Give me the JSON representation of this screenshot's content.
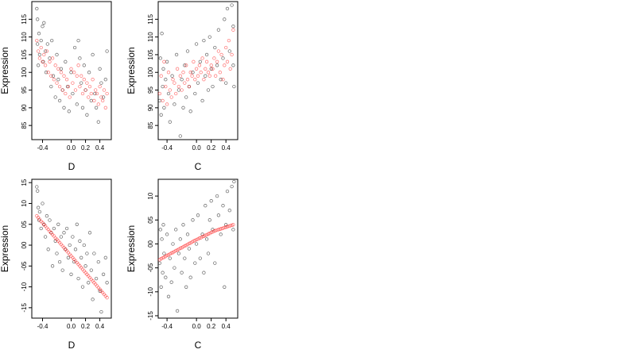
{
  "chart_data": [
    {
      "type": "scatter",
      "xlabel": "D",
      "ylabel": "Expression",
      "xlim": [
        -0.55,
        0.56
      ],
      "ylim": [
        8.1,
        12.0
      ],
      "x_ticks": [
        {
          "value": -0.4,
          "label": "-0.4"
        },
        {
          "value": 0.0,
          "label": "0.0"
        },
        {
          "value": 0.2,
          "label": "0.2"
        },
        {
          "value": 0.4,
          "label": "0.4"
        }
      ],
      "y_ticks": [
        {
          "value": 8.5,
          "label": "85"
        },
        {
          "value": 9.0,
          "label": "90"
        },
        {
          "value": 9.5,
          "label": "95"
        },
        {
          "value": 10.0,
          "label": "100"
        },
        {
          "value": 10.5,
          "label": "105"
        },
        {
          "value": 11.0,
          "label": "110"
        },
        {
          "value": 11.5,
          "label": "115"
        }
      ],
      "series": [
        {
          "color": "#000000",
          "x": [
            -0.48,
            -0.47,
            -0.47,
            -0.46,
            -0.45,
            -0.44,
            -0.42,
            -0.4,
            -0.39,
            -0.38,
            -0.36,
            -0.35,
            -0.33,
            -0.3,
            -0.28,
            -0.27,
            -0.25,
            -0.22,
            -0.2,
            -0.18,
            -0.16,
            -0.14,
            -0.12,
            -0.1,
            -0.08,
            -0.05,
            -0.03,
            0.0,
            0.02,
            0.05,
            0.08,
            0.1,
            0.12,
            0.14,
            0.16,
            0.18,
            0.2,
            0.22,
            0.25,
            0.28,
            0.3,
            0.33,
            0.35,
            0.38,
            0.4,
            0.42,
            0.45,
            0.48,
            0.5
          ],
          "y": [
            11.8,
            11.5,
            10.8,
            10.2,
            11.1,
            10.5,
            10.9,
            11.3,
            10.3,
            11.4,
            10.6,
            10.0,
            10.8,
            10.4,
            9.6,
            10.9,
            9.9,
            9.3,
            10.5,
            9.8,
            9.2,
            10.1,
            9.5,
            9.0,
            10.3,
            9.6,
            8.9,
            10.0,
            9.4,
            10.7,
            9.1,
            10.9,
            10.4,
            9.7,
            9.0,
            10.2,
            9.5,
            8.8,
            10.0,
            9.2,
            10.5,
            9.4,
            9.0,
            8.6,
            10.1,
            9.7,
            9.3,
            9.8,
            10.6
          ]
        },
        {
          "color": "#ff0000",
          "x": [
            -0.48,
            -0.46,
            -0.44,
            -0.42,
            -0.4,
            -0.38,
            -0.36,
            -0.34,
            -0.32,
            -0.3,
            -0.28,
            -0.26,
            -0.24,
            -0.22,
            -0.2,
            -0.18,
            -0.16,
            -0.14,
            -0.12,
            -0.1,
            -0.08,
            -0.06,
            -0.04,
            -0.02,
            0.0,
            0.02,
            0.04,
            0.06,
            0.08,
            0.1,
            0.12,
            0.14,
            0.16,
            0.18,
            0.2,
            0.22,
            0.24,
            0.26,
            0.28,
            0.3,
            0.32,
            0.34,
            0.36,
            0.38,
            0.4,
            0.42,
            0.44,
            0.46,
            0.48,
            0.5
          ],
          "y": [
            10.9,
            10.6,
            10.4,
            10.7,
            10.3,
            10.5,
            10.2,
            10.6,
            10.0,
            10.3,
            9.9,
            10.4,
            9.8,
            10.2,
            9.7,
            10.1,
            9.6,
            10.0,
            9.5,
            9.9,
            9.4,
            9.8,
            9.6,
            9.3,
            10.1,
            9.7,
            10.0,
            9.5,
            9.9,
            10.2,
            9.6,
            9.9,
            9.4,
            9.8,
            9.5,
            9.7,
            9.3,
            9.6,
            9.4,
            9.8,
            9.2,
            9.5,
            9.4,
            9.1,
            9.6,
            9.3,
            9.2,
            9.5,
            9.0,
            9.4
          ]
        }
      ]
    },
    {
      "type": "scatter",
      "xlabel": "C",
      "ylabel": "Expression",
      "xlim": [
        -0.52,
        0.56
      ],
      "ylim": [
        8.1,
        12.0
      ],
      "x_ticks": [
        {
          "value": -0.4,
          "label": "-0.4"
        },
        {
          "value": 0.0,
          "label": "0.0"
        },
        {
          "value": 0.2,
          "label": "0.2"
        },
        {
          "value": 0.4,
          "label": "0.4"
        }
      ],
      "y_ticks": [
        {
          "value": 8.5,
          "label": "85"
        },
        {
          "value": 9.0,
          "label": "90"
        },
        {
          "value": 9.5,
          "label": "95"
        },
        {
          "value": 10.0,
          "label": "100"
        },
        {
          "value": 10.5,
          "label": "105"
        },
        {
          "value": 11.0,
          "label": "110"
        },
        {
          "value": 11.5,
          "label": "115"
        }
      ],
      "series": [
        {
          "color": "#000000",
          "x": [
            -0.5,
            -0.49,
            -0.48,
            -0.47,
            -0.46,
            -0.45,
            -0.44,
            -0.42,
            -0.4,
            -0.38,
            -0.36,
            -0.33,
            -0.3,
            -0.27,
            -0.24,
            -0.22,
            -0.2,
            -0.18,
            -0.16,
            -0.14,
            -0.12,
            -0.1,
            -0.08,
            -0.05,
            -0.02,
            0.0,
            0.02,
            0.05,
            0.08,
            0.1,
            0.12,
            0.14,
            0.16,
            0.18,
            0.2,
            0.22,
            0.25,
            0.28,
            0.3,
            0.33,
            0.36,
            0.38,
            0.4,
            0.42,
            0.45,
            0.48,
            0.5,
            0.5,
            0.51
          ],
          "y": [
            9.2,
            10.4,
            8.8,
            11.1,
            9.6,
            10.1,
            9.0,
            9.8,
            10.3,
            9.4,
            8.6,
            9.9,
            9.1,
            10.5,
            9.5,
            8.2,
            9.8,
            9.0,
            10.2,
            9.3,
            10.6,
            9.6,
            8.9,
            10.0,
            9.4,
            10.8,
            9.7,
            10.3,
            9.2,
            10.9,
            9.9,
            10.5,
            9.5,
            11.0,
            10.1,
            9.6,
            10.7,
            10.2,
            11.2,
            9.8,
            10.4,
            11.5,
            9.7,
            11.8,
            10.6,
            11.9,
            10.2,
            11.3,
            9.6
          ]
        },
        {
          "color": "#ff0000",
          "x": [
            -0.5,
            -0.48,
            -0.46,
            -0.44,
            -0.42,
            -0.4,
            -0.38,
            -0.36,
            -0.34,
            -0.32,
            -0.3,
            -0.28,
            -0.26,
            -0.24,
            -0.22,
            -0.2,
            -0.18,
            -0.16,
            -0.14,
            -0.12,
            -0.1,
            -0.08,
            -0.06,
            -0.04,
            -0.02,
            0.0,
            0.02,
            0.04,
            0.06,
            0.08,
            0.1,
            0.12,
            0.14,
            0.16,
            0.18,
            0.2,
            0.22,
            0.24,
            0.26,
            0.28,
            0.3,
            0.32,
            0.34,
            0.36,
            0.38,
            0.4,
            0.42,
            0.44,
            0.46,
            0.48,
            0.5
          ],
          "y": [
            9.4,
            9.9,
            9.2,
            10.3,
            9.6,
            9.1,
            10.0,
            9.5,
            9.3,
            9.8,
            9.7,
            9.4,
            10.1,
            9.6,
            9.9,
            9.5,
            10.0,
            9.7,
            10.2,
            9.8,
            9.6,
            10.0,
            9.9,
            10.3,
            9.8,
            10.1,
            9.9,
            10.2,
            10.0,
            10.4,
            9.8,
            10.1,
            10.3,
            10.0,
            9.9,
            10.2,
            10.1,
            10.4,
            9.9,
            10.3,
            10.6,
            10.0,
            10.5,
            9.8,
            10.2,
            10.7,
            10.3,
            10.9,
            10.1,
            10.5,
            11.2
          ]
        }
      ]
    },
    {
      "type": "scatter",
      "xlabel": "D",
      "ylabel": "Expression",
      "xlim": [
        -0.55,
        0.56
      ],
      "ylim": [
        -1.75,
        1.58
      ],
      "x_ticks": [
        {
          "value": -0.4,
          "label": "-0.4"
        },
        {
          "value": 0.0,
          "label": "0.0"
        },
        {
          "value": 0.2,
          "label": "0.2"
        },
        {
          "value": 0.4,
          "label": "0.4"
        }
      ],
      "y_ticks": [
        {
          "value": -1.5,
          "label": "-15"
        },
        {
          "value": -1.0,
          "label": "-10"
        },
        {
          "value": -0.5,
          "label": "-05"
        },
        {
          "value": 0.0,
          "label": "00"
        },
        {
          "value": 0.5,
          "label": "05"
        },
        {
          "value": 1.0,
          "label": "10"
        },
        {
          "value": 1.5,
          "label": "15"
        }
      ],
      "series": [
        {
          "color": "#000000",
          "x": [
            -0.48,
            -0.47,
            -0.46,
            -0.45,
            -0.44,
            -0.42,
            -0.4,
            -0.38,
            -0.36,
            -0.34,
            -0.32,
            -0.3,
            -0.28,
            -0.26,
            -0.24,
            -0.22,
            -0.2,
            -0.18,
            -0.16,
            -0.14,
            -0.12,
            -0.1,
            -0.08,
            -0.06,
            -0.04,
            -0.02,
            0.0,
            0.02,
            0.04,
            0.06,
            0.08,
            0.1,
            0.12,
            0.14,
            0.16,
            0.18,
            0.2,
            0.22,
            0.24,
            0.26,
            0.28,
            0.3,
            0.32,
            0.35,
            0.38,
            0.4,
            0.42,
            0.45,
            0.48,
            0.5
          ],
          "y": [
            1.4,
            1.3,
            0.9,
            0.6,
            0.8,
            0.4,
            1.0,
            0.5,
            0.2,
            0.7,
            -0.1,
            0.6,
            0.3,
            -0.5,
            0.4,
            0.1,
            -0.2,
            0.5,
            -0.4,
            0.2,
            -0.6,
            0.3,
            -0.1,
            0.4,
            -0.3,
            0.0,
            -0.7,
            0.2,
            -0.4,
            -0.1,
            0.5,
            -0.8,
            0.1,
            -0.3,
            -1.0,
            0.0,
            -0.5,
            -0.2,
            -0.9,
            0.3,
            -0.6,
            -1.3,
            -0.2,
            -0.8,
            -0.4,
            -1.1,
            -1.6,
            -0.7,
            -0.3,
            -0.9
          ]
        },
        {
          "color": "#ff0000",
          "x": [
            -0.48,
            -0.46,
            -0.44,
            -0.42,
            -0.4,
            -0.38,
            -0.36,
            -0.34,
            -0.32,
            -0.3,
            -0.28,
            -0.26,
            -0.24,
            -0.22,
            -0.2,
            -0.18,
            -0.16,
            -0.14,
            -0.12,
            -0.1,
            -0.08,
            -0.06,
            -0.04,
            -0.02,
            0.0,
            0.02,
            0.04,
            0.06,
            0.08,
            0.1,
            0.12,
            0.14,
            0.16,
            0.18,
            0.2,
            0.22,
            0.24,
            0.26,
            0.28,
            0.3,
            0.32,
            0.34,
            0.36,
            0.38,
            0.4,
            0.42,
            0.44,
            0.46,
            0.48,
            0.5
          ],
          "y": [
            0.7,
            0.66,
            0.62,
            0.57,
            0.54,
            0.49,
            0.46,
            0.41,
            0.38,
            0.33,
            0.3,
            0.25,
            0.22,
            0.17,
            0.14,
            0.1,
            0.06,
            0.02,
            -0.02,
            -0.06,
            -0.1,
            -0.14,
            -0.18,
            -0.22,
            -0.26,
            -0.3,
            -0.34,
            -0.38,
            -0.42,
            -0.46,
            -0.5,
            -0.54,
            -0.58,
            -0.62,
            -0.66,
            -0.7,
            -0.74,
            -0.78,
            -0.82,
            -0.86,
            -0.9,
            -0.94,
            -0.98,
            -1.02,
            -1.06,
            -1.1,
            -1.14,
            -1.18,
            -1.22,
            -1.26
          ]
        }
      ]
    },
    {
      "type": "scatter",
      "xlabel": "C",
      "ylabel": "Expression",
      "xlim": [
        -0.52,
        0.56
      ],
      "ylim": [
        -1.55,
        1.35
      ],
      "x_ticks": [
        {
          "value": -0.4,
          "label": "-0.4"
        },
        {
          "value": 0.0,
          "label": "0.0"
        },
        {
          "value": 0.2,
          "label": "0.2"
        },
        {
          "value": 0.4,
          "label": "0.4"
        }
      ],
      "y_ticks": [
        {
          "value": -1.5,
          "label": "-15"
        },
        {
          "value": -1.0,
          "label": "-10"
        },
        {
          "value": -0.5,
          "label": "-05"
        },
        {
          "value": 0.0,
          "label": "00"
        },
        {
          "value": 0.5,
          "label": "05"
        },
        {
          "value": 1.0,
          "label": "10"
        }
      ],
      "series": [
        {
          "color": "#000000",
          "x": [
            -0.5,
            -0.49,
            -0.48,
            -0.47,
            -0.46,
            -0.45,
            -0.44,
            -0.42,
            -0.4,
            -0.38,
            -0.36,
            -0.34,
            -0.32,
            -0.3,
            -0.28,
            -0.26,
            -0.24,
            -0.22,
            -0.2,
            -0.18,
            -0.16,
            -0.14,
            -0.12,
            -0.1,
            -0.08,
            -0.05,
            -0.02,
            0.0,
            0.02,
            0.05,
            0.08,
            0.1,
            0.12,
            0.14,
            0.16,
            0.18,
            0.2,
            0.22,
            0.25,
            0.28,
            0.3,
            0.33,
            0.36,
            0.38,
            0.4,
            0.42,
            0.45,
            0.48,
            0.5,
            0.51
          ],
          "y": [
            -0.4,
            0.3,
            -0.9,
            0.1,
            -0.6,
            0.4,
            -0.2,
            -0.7,
            0.2,
            -1.1,
            -0.3,
            -0.8,
            0.0,
            -0.5,
            0.3,
            -1.4,
            -0.2,
            0.1,
            -0.6,
            0.4,
            -0.3,
            -0.9,
            0.2,
            -0.1,
            -0.7,
            0.5,
            -0.4,
            0.0,
            0.6,
            -0.3,
            0.2,
            -0.6,
            0.8,
            0.1,
            -0.2,
            0.5,
            0.9,
            0.3,
            -0.4,
            1.0,
            0.6,
            0.2,
            0.8,
            -0.9,
            0.4,
            1.1,
            0.7,
            1.2,
            0.3,
            1.3
          ]
        },
        {
          "color": "#ff0000",
          "x": [
            -0.5,
            -0.48,
            -0.46,
            -0.44,
            -0.42,
            -0.4,
            -0.38,
            -0.36,
            -0.34,
            -0.32,
            -0.3,
            -0.28,
            -0.26,
            -0.24,
            -0.22,
            -0.2,
            -0.18,
            -0.16,
            -0.14,
            -0.12,
            -0.1,
            -0.08,
            -0.06,
            -0.04,
            -0.02,
            0.0,
            0.02,
            0.04,
            0.06,
            0.08,
            0.1,
            0.12,
            0.14,
            0.16,
            0.18,
            0.2,
            0.22,
            0.24,
            0.26,
            0.28,
            0.3,
            0.32,
            0.34,
            0.36,
            0.38,
            0.4,
            0.42,
            0.44,
            0.46,
            0.48,
            0.5
          ],
          "y": [
            -0.33,
            -0.31,
            -0.29,
            -0.28,
            -0.26,
            -0.24,
            -0.23,
            -0.21,
            -0.19,
            -0.18,
            -0.16,
            -0.14,
            -0.13,
            -0.11,
            -0.09,
            -0.08,
            -0.06,
            -0.04,
            -0.03,
            -0.01,
            0.01,
            0.02,
            0.04,
            0.06,
            0.07,
            0.09,
            0.1,
            0.12,
            0.13,
            0.15,
            0.16,
            0.18,
            0.19,
            0.21,
            0.22,
            0.24,
            0.25,
            0.27,
            0.28,
            0.29,
            0.3,
            0.31,
            0.32,
            0.33,
            0.34,
            0.35,
            0.36,
            0.37,
            0.38,
            0.39,
            0.4
          ]
        }
      ]
    }
  ]
}
